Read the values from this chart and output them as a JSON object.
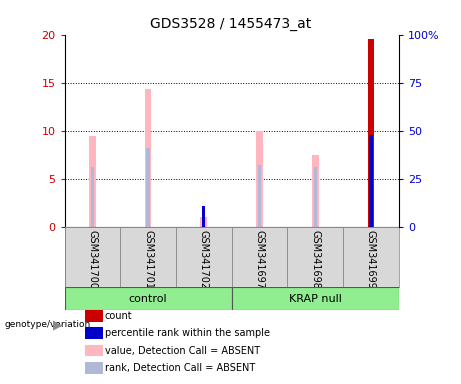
{
  "title": "GDS3528 / 1455473_at",
  "samples": [
    "GSM341700",
    "GSM341701",
    "GSM341702",
    "GSM341697",
    "GSM341698",
    "GSM341699"
  ],
  "group_labels": [
    "control",
    "KRAP null"
  ],
  "group_colors": [
    "#90ee90",
    "#90ee90"
  ],
  "bar_color_absent_value": "#ffb6c1",
  "bar_color_absent_rank": "#b0b8d8",
  "bar_color_count": "#cc0000",
  "bar_color_percentile": "#0000cc",
  "absent_value_heights": [
    9.5,
    14.3,
    1.0,
    10.0,
    7.5,
    0
  ],
  "absent_rank_heights": [
    6.2,
    8.2,
    0,
    6.5,
    6.2,
    0
  ],
  "count_heights": [
    0,
    0,
    0,
    0,
    0,
    19.5
  ],
  "percentile_rank_heights_pct": [
    0,
    0,
    11,
    0,
    0,
    48
  ],
  "ylim_left": [
    0,
    20
  ],
  "ylim_right": [
    0,
    100
  ],
  "yticks_left": [
    0,
    5,
    10,
    15,
    20
  ],
  "yticks_right": [
    0,
    25,
    50,
    75,
    100
  ],
  "ytick_labels_left": [
    "0",
    "5",
    "10",
    "15",
    "20"
  ],
  "ytick_labels_right": [
    "0",
    "25",
    "50",
    "75",
    "100%"
  ],
  "ylabel_left_color": "#cc0000",
  "ylabel_right_color": "#0000cc",
  "absent_bar_width": 0.12,
  "rank_bar_width": 0.06,
  "count_bar_width": 0.12,
  "percentile_bar_width": 0.06,
  "legend_items": [
    {
      "label": "count",
      "color": "#cc0000"
    },
    {
      "label": "percentile rank within the sample",
      "color": "#0000cc"
    },
    {
      "label": "value, Detection Call = ABSENT",
      "color": "#ffb6c1"
    },
    {
      "label": "rank, Detection Call = ABSENT",
      "color": "#b0b8d8"
    }
  ]
}
